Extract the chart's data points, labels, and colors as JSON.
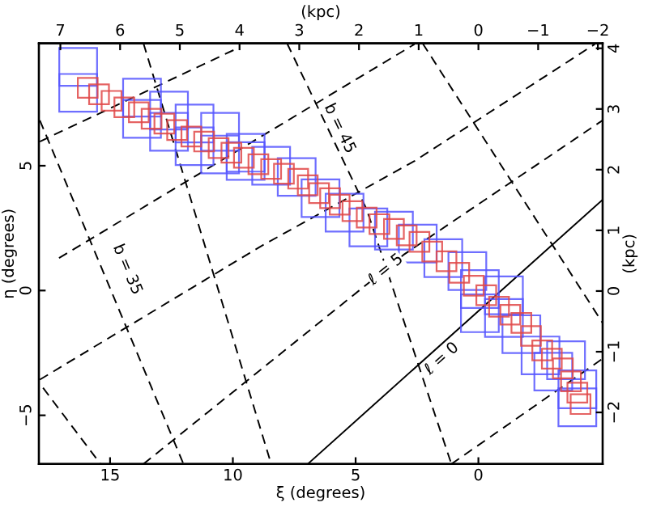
{
  "chart_data": {
    "type": "scatter",
    "xlabel": "ξ (degrees)",
    "ylabel": "η (degrees)",
    "x2label": "(kpc)",
    "y2label": "(kpc)",
    "xlim": [
      17.9,
      -5.06
    ],
    "ylim": [
      -6.95,
      9.9
    ],
    "xticks": [
      15,
      10,
      5,
      0
    ],
    "yticks": [
      {
        "value": -5,
        "label": "−5"
      },
      0,
      5
    ],
    "x2lim": [
      7.36,
      -2.08
    ],
    "x2ticks": [
      7,
      6,
      5,
      4,
      3,
      2,
      1,
      0,
      {
        "value": -1,
        "label": "−1"
      },
      {
        "value": -2,
        "label": "−2"
      }
    ],
    "y2lim": [
      -2.85,
      4.08
    ],
    "y2ticks": [
      {
        "value": -2,
        "label": "−2"
      },
      {
        "value": -1,
        "label": "−1"
      },
      0,
      1,
      2,
      3,
      4
    ],
    "grid": false,
    "legend": false,
    "series": [
      {
        "type": "line",
        "color": "#000000",
        "line_style": "solid",
        "x": [
          6.95,
          -5.06
        ],
        "values": [
          -6.95,
          3.64
        ]
      },
      {
        "type": "line",
        "color": "#000000",
        "line_style": "dashed",
        "x": [
          13.64,
          3.05,
          -5.06
        ],
        "values": [
          -6.95,
          1.43,
          6.82
        ]
      },
      {
        "type": "line",
        "color": "#000000",
        "line_style": "dashed",
        "x": [
          17.86,
          8.9,
          2.6,
          -4.74
        ],
        "values": [
          -3.57,
          1.75,
          5.19,
          9.87
        ]
      },
      {
        "type": "line",
        "color": "#000000",
        "line_style": "dashed",
        "x": [
          17.08,
          2.6
        ],
        "values": [
          1.3,
          9.87
        ]
      },
      {
        "type": "line",
        "color": "#000000",
        "line_style": "dashed",
        "x": [
          17.86,
          9.74
        ],
        "values": [
          5.97,
          9.74
        ]
      },
      {
        "type": "line",
        "color": "#000000",
        "line_style": "dashed",
        "x": [
          1.1,
          -5.06
        ],
        "values": [
          -6.95,
          -2.73
        ]
      },
      {
        "type": "line",
        "color": "#000000",
        "line_style": "dashed",
        "x": [
          17.73,
          15.39
        ],
        "values": [
          -3.9,
          -6.95
        ]
      },
      {
        "type": "line",
        "color": "#000000",
        "line_style": "dashed",
        "x": [
          17.86,
          12.01
        ],
        "values": [
          6.82,
          -6.95
        ]
      },
      {
        "type": "line",
        "color": "#000000",
        "line_style": "dashed",
        "x": [
          13.64,
          8.44
        ],
        "values": [
          9.9,
          -6.95
        ]
      },
      {
        "type": "line",
        "color": "#000000",
        "line_style": "dashed",
        "x": [
          7.79,
          4.55,
          1.1
        ],
        "values": [
          9.9,
          3.25,
          -6.95
        ]
      },
      {
        "type": "line",
        "color": "#000000",
        "line_style": "dashed",
        "x": [
          2.27,
          -5.06
        ],
        "values": [
          9.9,
          -1.3
        ]
      },
      {
        "marker": "square",
        "color": "#5555ff",
        "x": [
          16.3,
          16.3,
          13.7,
          13.7,
          12.6,
          12.6,
          11.56,
          11.56,
          10.52,
          10.52,
          9.48,
          9.48,
          8.44,
          7.4,
          6.43,
          5.45,
          4.48,
          3.44,
          2.47,
          1.43,
          0.45,
          -0.06,
          -1.04,
          -0.06,
          -1.04,
          -1.75,
          -2.53,
          -3.05,
          -3.57,
          -4.03,
          -4.03
        ],
        "values": [
          8.96,
          7.92,
          7.73,
          6.88,
          7.21,
          6.36,
          6.69,
          5.78,
          6.36,
          5.45,
          5.52,
          5.19,
          5.0,
          4.55,
          3.7,
          3.12,
          2.53,
          2.4,
          1.88,
          1.3,
          0.78,
          0.06,
          -0.19,
          -0.91,
          -1.1,
          -1.75,
          -2.6,
          -3.25,
          -2.79,
          -3.96,
          -4.68
        ]
      },
      {
        "marker": "square",
        "color": "#e04848",
        "x": [
          15.91,
          15.45,
          14.94,
          14.42,
          13.83,
          13.31,
          12.79,
          12.27,
          11.69,
          11.17,
          10.58,
          10.06,
          9.55,
          8.96,
          8.44,
          7.92,
          7.34,
          6.95,
          6.49,
          6.04,
          5.65,
          5.13,
          4.55,
          4.03,
          3.44,
          2.92,
          2.4,
          1.88,
          1.3,
          0.78,
          0.19,
          -0.32,
          -0.84,
          -1.3,
          -1.75,
          -2.14,
          -2.6,
          -2.99,
          -3.44,
          -3.77,
          -4.03,
          -4.16
        ],
        "values": [
          8.12,
          7.86,
          7.6,
          7.34,
          7.14,
          6.88,
          6.69,
          6.43,
          6.17,
          5.97,
          5.71,
          5.52,
          5.32,
          5.06,
          4.87,
          4.68,
          4.48,
          4.22,
          3.9,
          3.7,
          3.44,
          3.18,
          2.92,
          2.66,
          2.47,
          2.21,
          1.95,
          1.56,
          1.17,
          0.71,
          0.19,
          -0.19,
          -0.65,
          -0.97,
          -1.3,
          -1.82,
          -2.4,
          -2.73,
          -3.12,
          -3.64,
          -4.09,
          -4.55
        ]
      }
    ],
    "annotations": [
      {
        "text": "b = 45",
        "x": 5.65,
        "y": 6.49
      },
      {
        "text": "b = 35",
        "x": 14.3,
        "y": 0.84
      },
      {
        "text": "ℓ = 5",
        "x": 3.77,
        "y": 0.84
      },
      {
        "text": "ℓ = 0",
        "x": 1.49,
        "y": -2.73
      }
    ]
  }
}
